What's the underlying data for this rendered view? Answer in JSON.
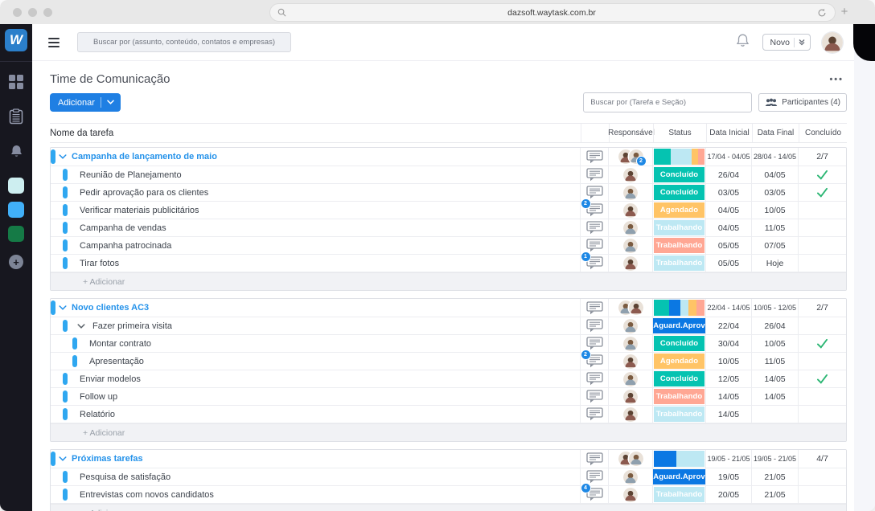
{
  "browser": {
    "url": "dazsoft.waytask.com.br",
    "new_tab_label": "+"
  },
  "sidebar": {
    "logo": "W",
    "items": [
      "apps-grid",
      "tasks-clipboard",
      "notifications-bell",
      "board-cyan",
      "board-blue",
      "board-green",
      "add-board"
    ],
    "board_colors": {
      "cyan": "#cdeef0",
      "blue": "#41b0f8",
      "green": "#157a46"
    }
  },
  "topbar": {
    "search_placeholder": "Buscar por (assunto, conteúdo, contatos e empresas)",
    "new_label": "Novo"
  },
  "content": {
    "title": "Time de Comunicação",
    "menu_dots": "•••",
    "add_label": "Adicionar",
    "search_placeholder": "Buscar por (Tarefa e Seção)",
    "participants_label": "Participantes (4)"
  },
  "table": {
    "name_header": "Nome da tarefa",
    "columns": [
      "Responsável",
      "Status",
      "Data Inicial",
      "Data Final",
      "Concluído"
    ],
    "add_row_label": "+ Adicionar",
    "status_colors": {
      "concluido": "#05c3b1",
      "aguard": "#0b78e3",
      "agendado": "#ffc466",
      "trab_azul": "#bde8f3",
      "trab_rosa": "#ffa794"
    },
    "accent": {
      "link": "#2492ea",
      "pill": "#2fa7f0",
      "check": "#2bb673",
      "badge": "#1e88e5"
    },
    "groups": [
      {
        "name": "Campanha de lançamento de maio",
        "avatars": [
          "f",
          "m"
        ],
        "avatar_badge": "2",
        "bar": [
          [
            "concluido",
            34
          ],
          [
            "trab_azul",
            40
          ],
          [
            "agendado",
            13
          ],
          [
            "trab_rosa",
            13
          ]
        ],
        "inicial": "17/04 - 04/05",
        "final": "28/04 - 14/05",
        "progress": "2/7",
        "rows": [
          {
            "name": "Reunião de Planejamento",
            "level": 1,
            "avatar": "f",
            "status": {
              "label": "Concluído",
              "key": "concluido"
            },
            "inicial": "26/04",
            "final": "04/05",
            "done": true
          },
          {
            "name": "Pedir aprovação para os clientes",
            "level": 1,
            "avatar": "m",
            "status": {
              "label": "Concluído",
              "key": "concluido"
            },
            "inicial": "03/05",
            "final": "03/05",
            "done": true
          },
          {
            "name": "Verificar materiais publicitários",
            "level": 1,
            "badge": "2",
            "avatar": "f",
            "status": {
              "label": "Agendado",
              "key": "agendado"
            },
            "inicial": "04/05",
            "final": "10/05",
            "done": false
          },
          {
            "name": "Campanha de vendas",
            "level": 1,
            "avatar": "m",
            "status": {
              "label": "Trabalhando",
              "key": "trab_azul"
            },
            "inicial": "04/05",
            "final": "11/05",
            "done": false
          },
          {
            "name": "Campanha patrocinada",
            "level": 1,
            "avatar": "m",
            "status": {
              "label": "Trabalhando",
              "key": "trab_rosa"
            },
            "inicial": "05/05",
            "final": "07/05",
            "done": false
          },
          {
            "name": "Tirar fotos",
            "level": 1,
            "badge": "1",
            "avatar": "f",
            "status": {
              "label": "Trabalhando",
              "key": "trab_azul"
            },
            "inicial": "05/05",
            "final": "Hoje",
            "done": false
          }
        ]
      },
      {
        "name": "Novo clientes AC3",
        "avatars": [
          "m",
          "f"
        ],
        "avatar_badge": "",
        "bar": [
          [
            "concluido",
            30
          ],
          [
            "aguard",
            22
          ],
          [
            "trab_azul",
            16
          ],
          [
            "agendado",
            16
          ],
          [
            "trab_rosa",
            16
          ]
        ],
        "inicial": "22/04 - 14/05",
        "final": "10/05 - 12/05",
        "progress": "2/7",
        "rows": [
          {
            "name": "Fazer primeira visita",
            "level": 1,
            "expand": true,
            "avatar": "m",
            "status": {
              "label": "Aguard.Aprov",
              "key": "aguard"
            },
            "inicial": "22/04",
            "final": "26/04",
            "done": false
          },
          {
            "name": "Montar contrato",
            "level": 2,
            "avatar": "m",
            "status": {
              "label": "Concluído",
              "key": "concluido"
            },
            "inicial": "30/04",
            "final": "10/05",
            "done": true
          },
          {
            "name": "Apresentação",
            "level": 2,
            "badge": "2",
            "avatar": "f",
            "status": {
              "label": "Agendado",
              "key": "agendado"
            },
            "inicial": "10/05",
            "final": "11/05",
            "done": false
          },
          {
            "name": "Enviar modelos",
            "level": 1,
            "avatar": "m",
            "status": {
              "label": "Concluído",
              "key": "concluido"
            },
            "inicial": "12/05",
            "final": "14/05",
            "done": true
          },
          {
            "name": "Follow up",
            "level": 1,
            "avatar": "f",
            "status": {
              "label": "Trabalhando",
              "key": "trab_rosa"
            },
            "inicial": "14/05",
            "final": "14/05",
            "done": false
          },
          {
            "name": "Relatório",
            "level": 1,
            "avatar": "f",
            "status": {
              "label": "Trabalhando",
              "key": "trab_azul"
            },
            "inicial": "14/05",
            "final": "",
            "done": false
          }
        ]
      },
      {
        "name": "Próximas tarefas",
        "avatars": [
          "f",
          "m"
        ],
        "avatar_badge": "",
        "bar": [
          [
            "aguard",
            45
          ],
          [
            "trab_azul",
            55
          ]
        ],
        "inicial": "19/05 - 21/05",
        "final": "19/05 - 21/05",
        "progress": "4/7",
        "rows": [
          {
            "name": "Pesquisa de satisfação",
            "level": 1,
            "avatar": "m",
            "status": {
              "label": "Aguard.Aprov",
              "key": "aguard"
            },
            "inicial": "19/05",
            "final": "21/05",
            "done": false
          },
          {
            "name": "Entrevistas com novos candidatos",
            "level": 1,
            "badge": "4",
            "avatar": "f",
            "status": {
              "label": "Trabalhando",
              "key": "trab_azul"
            },
            "inicial": "20/05",
            "final": "21/05",
            "done": false
          }
        ]
      }
    ]
  }
}
